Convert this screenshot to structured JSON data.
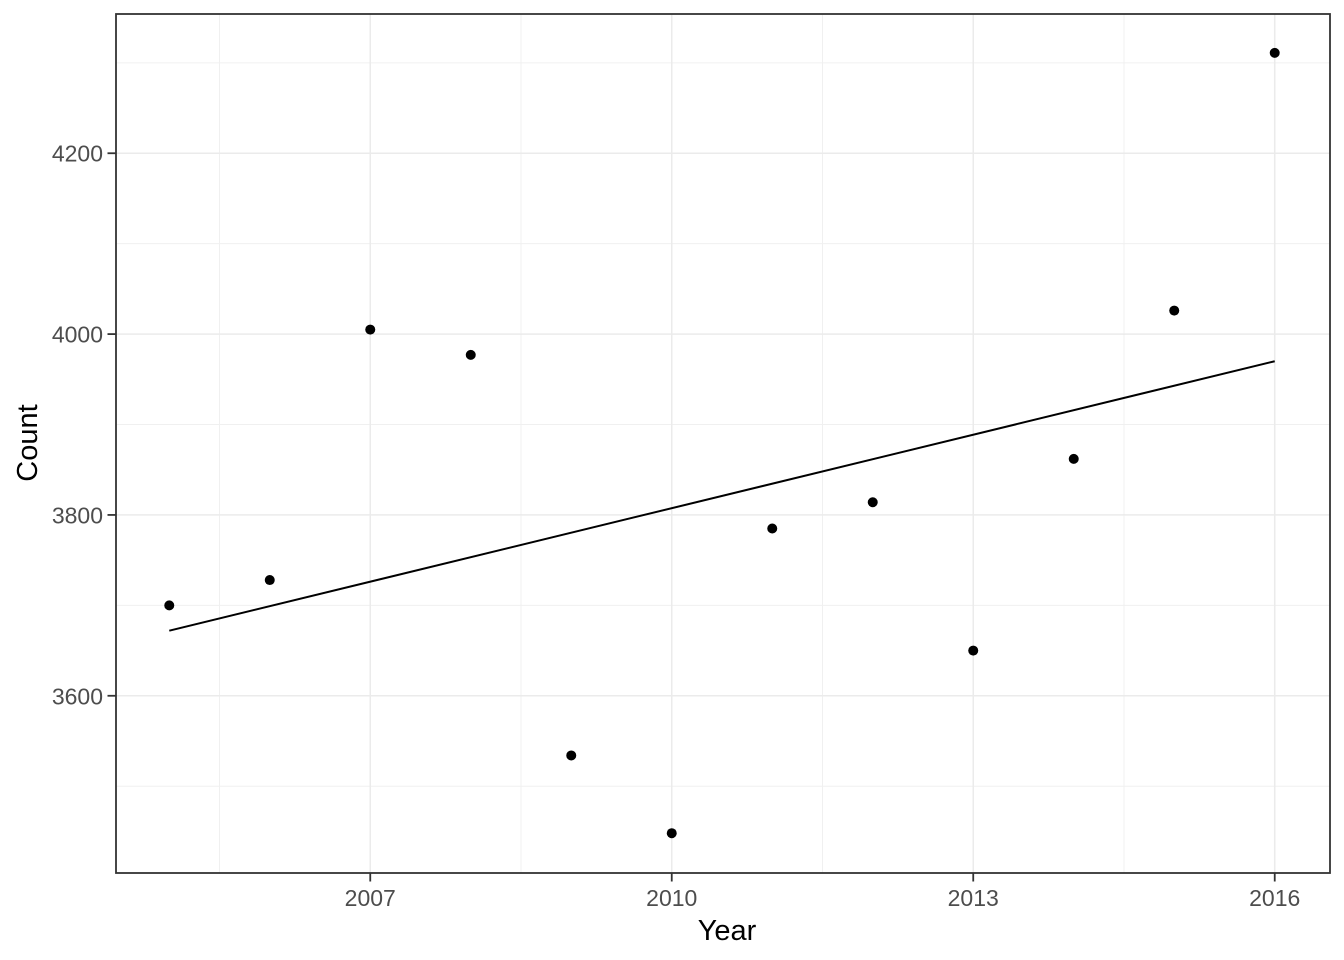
{
  "chart_data": {
    "type": "scatter",
    "title": "",
    "xlabel": "Year",
    "ylabel": "Count",
    "x": [
      2005,
      2006,
      2007,
      2008,
      2009,
      2010,
      2011,
      2012,
      2013,
      2014,
      2015,
      2016
    ],
    "y": [
      3700,
      3728,
      4005,
      3977,
      3534,
      3448,
      3785,
      3814,
      3650,
      3862,
      4026,
      4311
    ],
    "trend_line": {
      "type": "linear",
      "x": [
        2005,
        2016
      ],
      "y": [
        3672,
        3970
      ]
    },
    "x_ticks": [
      2007,
      2010,
      2013,
      2016
    ],
    "x_tick_labels": [
      "2007",
      "2010",
      "2013",
      "2016"
    ],
    "y_ticks": [
      3600,
      3800,
      4000,
      4200
    ],
    "y_tick_labels": [
      "3600",
      "3800",
      "4000",
      "4200"
    ],
    "x_minor_gridlines": [
      2005.5,
      2008.5,
      2011.5,
      2014.5
    ],
    "y_minor_gridlines": [
      3500,
      3700,
      3900,
      4100,
      4300
    ],
    "xlim": [
      2004.47,
      2016.55
    ],
    "ylim": [
      3404,
      4354
    ],
    "grid": "major-and-minor",
    "legend": "none",
    "colors": {
      "point": "#000000",
      "trend_line": "#000000",
      "grid_major": "#EBEBEB",
      "grid_minor": "#F0F0F0",
      "panel_border": "#333333",
      "tick_mark": "#333333",
      "axis_text": "#4D4D4D",
      "axis_title": "#000000",
      "background": "#FFFFFF"
    }
  }
}
